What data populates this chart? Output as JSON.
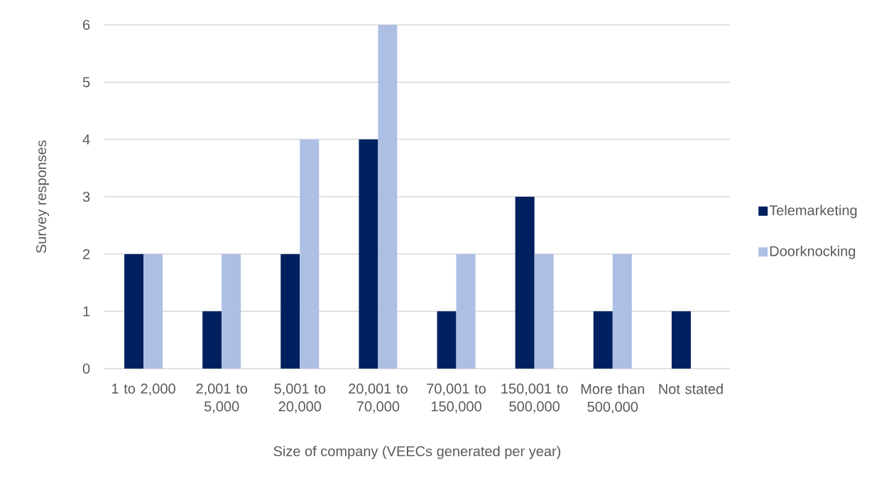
{
  "chart_data": {
    "type": "bar",
    "xlabel": "Size of company (VEECs generated per year)",
    "ylabel": "Survey responses",
    "categories": [
      "1 to 2,000",
      "2,001 to 5,000",
      "5,001 to 20,000",
      "20,001 to 70,000",
      "70,001 to 150,000",
      "150,001 to 500,000",
      "More than 500,000",
      "Not stated"
    ],
    "series": [
      {
        "name": "Telemarketing",
        "color": "#002060",
        "values": [
          2,
          1,
          2,
          4,
          1,
          3,
          1,
          1
        ]
      },
      {
        "name": "Doorknocking",
        "color": "#adbfe3",
        "values": [
          2,
          2,
          4,
          6,
          2,
          2,
          2,
          0
        ]
      }
    ],
    "ylim": [
      0,
      6
    ],
    "yticks": [
      0,
      1,
      2,
      3,
      4,
      5,
      6
    ],
    "grid": "y",
    "legend": "right"
  }
}
